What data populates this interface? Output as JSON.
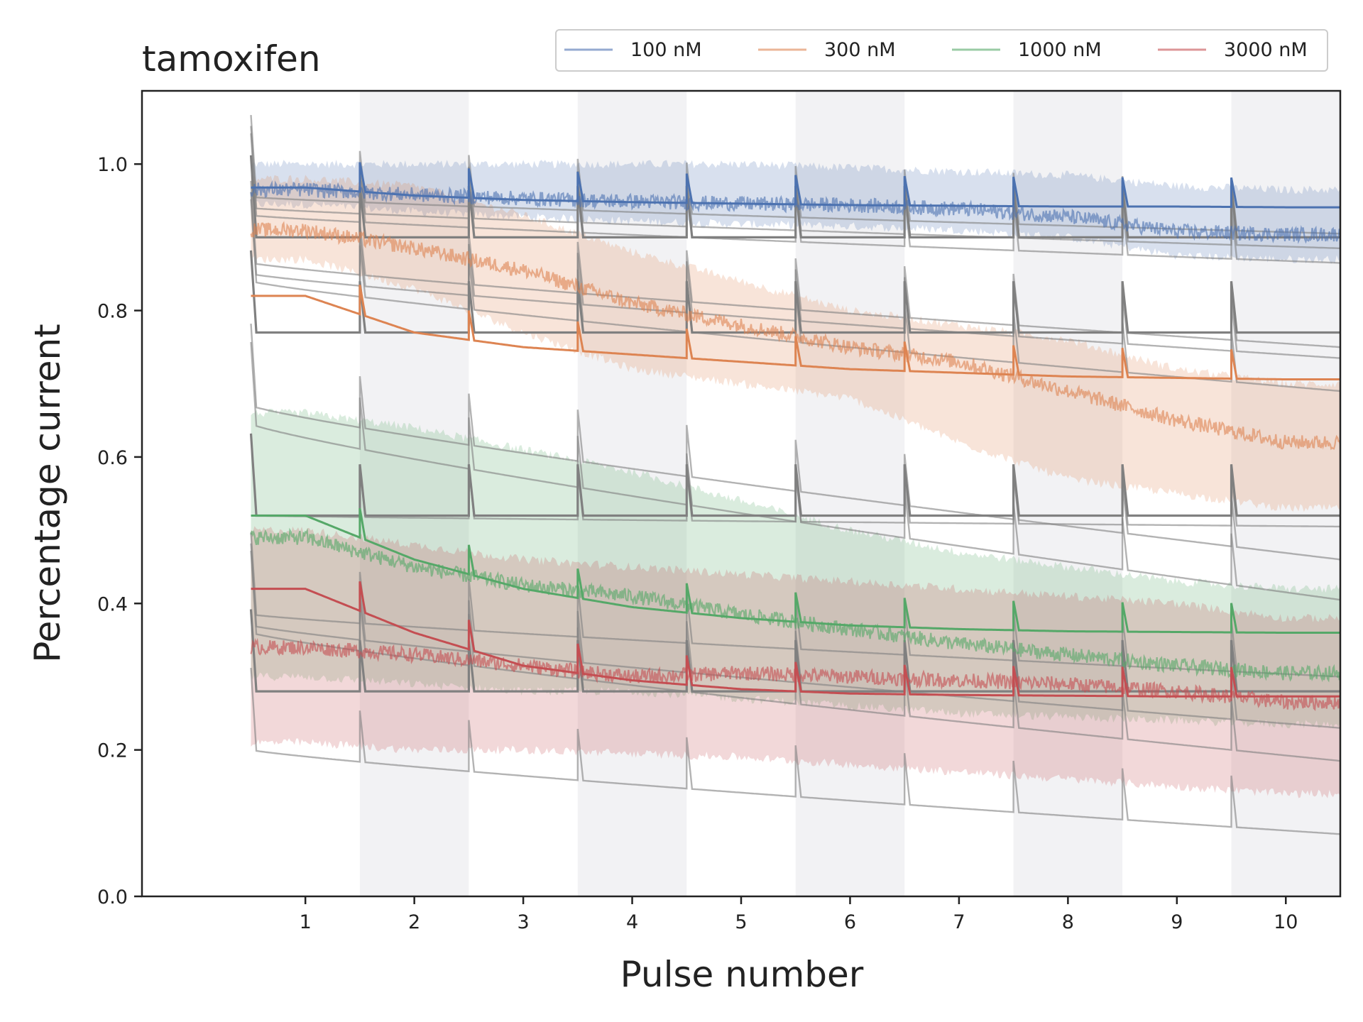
{
  "chart_data": {
    "type": "line",
    "title": "tamoxifen",
    "xlabel": "Pulse number",
    "ylabel": "Percentage current",
    "xlim": [
      -0.5,
      10.5
    ],
    "ylim": [
      0.0,
      1.1
    ],
    "xticks": [
      1,
      2,
      3,
      4,
      5,
      6,
      7,
      8,
      9,
      10
    ],
    "xtick_labels": [
      "1",
      "2",
      "3",
      "4",
      "5",
      "6",
      "7",
      "8",
      "9",
      "10"
    ],
    "yticks": [
      0.0,
      0.2,
      0.4,
      0.6,
      0.8,
      1.0
    ],
    "ytick_labels": [
      "0.0",
      "0.2",
      "0.4",
      "0.6",
      "0.8",
      "1.0"
    ],
    "shaded_pulses": [
      2,
      4,
      6,
      8,
      10
    ],
    "legend_position": "top-right",
    "series": [
      {
        "name": "100 nM",
        "color": "#4c72b0",
        "data_points": [
          0.965,
          0.958,
          0.953,
          0.949,
          0.946,
          0.944,
          0.939,
          0.928,
          0.908,
          0.904
        ],
        "band_low": [
          0.945,
          0.935,
          0.928,
          0.922,
          0.918,
          0.915,
          0.91,
          0.9,
          0.875,
          0.87
        ],
        "band_high": [
          1.0,
          1.0,
          1.0,
          1.0,
          1.0,
          0.995,
          0.99,
          0.985,
          0.97,
          0.965
        ],
        "model_fit": [
          0.968,
          0.957,
          0.951,
          0.948,
          0.946,
          0.944,
          0.943,
          0.942,
          0.942,
          0.941
        ]
      },
      {
        "name": "300 nM",
        "color": "#dd8452",
        "data_points": [
          0.91,
          0.885,
          0.855,
          0.81,
          0.78,
          0.75,
          0.73,
          0.69,
          0.65,
          0.62
        ],
        "band_low": [
          0.87,
          0.83,
          0.77,
          0.72,
          0.7,
          0.68,
          0.62,
          0.57,
          0.55,
          0.53
        ],
        "band_high": [
          0.98,
          0.97,
          0.93,
          0.88,
          0.84,
          0.8,
          0.78,
          0.76,
          0.72,
          0.7
        ],
        "model_fit": [
          0.82,
          0.77,
          0.75,
          0.74,
          0.73,
          0.72,
          0.715,
          0.71,
          0.708,
          0.706
        ]
      },
      {
        "name": "1000 nM",
        "color": "#55a868",
        "data_points": [
          0.49,
          0.45,
          0.425,
          0.41,
          0.385,
          0.365,
          0.345,
          0.33,
          0.315,
          0.305
        ],
        "band_low": [
          0.3,
          0.29,
          0.28,
          0.28,
          0.27,
          0.26,
          0.25,
          0.245,
          0.24,
          0.235
        ],
        "band_high": [
          0.66,
          0.64,
          0.61,
          0.58,
          0.54,
          0.5,
          0.47,
          0.45,
          0.43,
          0.42
        ],
        "model_fit": [
          0.52,
          0.46,
          0.42,
          0.395,
          0.38,
          0.37,
          0.365,
          0.362,
          0.361,
          0.36
        ]
      },
      {
        "name": "3000 nM",
        "color": "#c44e52",
        "data_points": [
          0.34,
          0.33,
          0.315,
          0.3,
          0.305,
          0.3,
          0.295,
          0.29,
          0.28,
          0.265
        ],
        "band_low": [
          0.21,
          0.2,
          0.2,
          0.195,
          0.19,
          0.18,
          0.17,
          0.16,
          0.15,
          0.14
        ],
        "band_high": [
          0.5,
          0.48,
          0.46,
          0.45,
          0.44,
          0.43,
          0.42,
          0.41,
          0.4,
          0.38
        ],
        "model_fit": [
          0.42,
          0.36,
          0.315,
          0.295,
          0.283,
          0.277,
          0.275,
          0.274,
          0.273,
          0.273
        ]
      }
    ],
    "reference_fits": {
      "color": "#808080",
      "lines": [
        {
          "start": 0.955,
          "end": 0.905
        },
        {
          "start": 0.94,
          "end": 0.885
        },
        {
          "start": 0.93,
          "end": 0.865
        },
        {
          "start": 0.9,
          "end": 0.9
        },
        {
          "start": 0.865,
          "end": 0.75
        },
        {
          "start": 0.85,
          "end": 0.735
        },
        {
          "start": 0.84,
          "end": 0.69
        },
        {
          "start": 0.77,
          "end": 0.77
        },
        {
          "start": 0.67,
          "end": 0.46
        },
        {
          "start": 0.645,
          "end": 0.405
        },
        {
          "start": 0.52,
          "end": 0.52
        },
        {
          "start": 0.52,
          "end": 0.505
        },
        {
          "start": 0.385,
          "end": 0.3
        },
        {
          "start": 0.37,
          "end": 0.23
        },
        {
          "start": 0.36,
          "end": 0.185
        },
        {
          "start": 0.28,
          "end": 0.28
        },
        {
          "start": 0.2,
          "end": 0.085
        }
      ]
    }
  }
}
